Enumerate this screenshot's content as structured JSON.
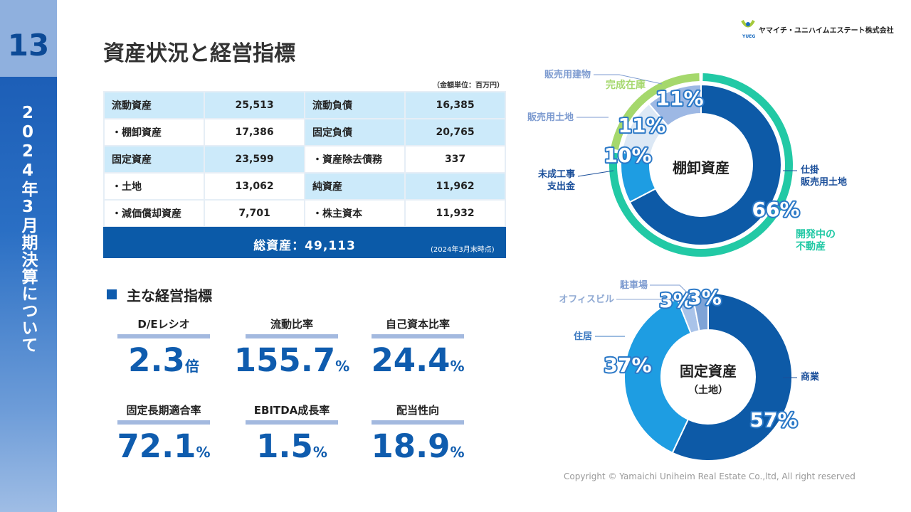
{
  "header": {
    "page_number": "13",
    "side_title": "2024年3月期決算について",
    "title": "資産状況と経営指標",
    "company": "ヤマイチ・ユニハイムエステート株式会社",
    "logo_text": "YUEG"
  },
  "table": {
    "unit_note": "（金額単位：百万円）",
    "rows": [
      [
        "流動資産",
        "25,513",
        "流動負債",
        "16,385"
      ],
      [
        "・棚卸資産",
        "17,386",
        "固定負債",
        "20,765"
      ],
      [
        "固定資産",
        "23,599",
        "・資産除去債務",
        "337"
      ],
      [
        "・土地",
        "13,062",
        "純資産",
        "11,962"
      ],
      [
        "・減価償却資産",
        "7,701",
        "・株主資本",
        "11,932"
      ]
    ],
    "total": "総資産：49,113",
    "as_of": "(2024年3月末時点)"
  },
  "indicators": {
    "heading": "主な経営指標",
    "items": [
      {
        "label": "D/Eレシオ",
        "value": "2.3",
        "unit": "倍"
      },
      {
        "label": "流動比率",
        "value": "155.7",
        "unit": "%"
      },
      {
        "label": "自己資本比率",
        "value": "24.4",
        "unit": "%"
      },
      {
        "label": "固定長期適合率",
        "value": "72.1",
        "unit": "%"
      },
      {
        "label": "EBITDA成長率",
        "value": "1.5",
        "unit": "%"
      },
      {
        "label": "配当性向",
        "value": "18.9",
        "unit": "%"
      }
    ]
  },
  "chart_data": [
    {
      "type": "donut",
      "center_label": "棚卸資産",
      "categories": [
        "仕掛\n販売用土地",
        "未成工事\n支出金",
        "販売用土地",
        "販売用建物"
      ],
      "values": [
        66,
        10,
        11,
        11
      ],
      "value_labels": [
        "66%",
        "10%",
        "11%",
        "11%"
      ],
      "colors": [
        "#0d5aa7",
        "#1e9de2",
        "#dce8f5",
        "#9db8e4"
      ],
      "outer_ring": {
        "categories": [
          "開発中の\n不動産",
          "完成在庫"
        ],
        "values": [
          76,
          22
        ],
        "colors": [
          "#22c9a5",
          "#a5d86c"
        ]
      }
    },
    {
      "type": "donut",
      "center_label": "固定資産",
      "center_sublabel": "（土地）",
      "categories": [
        "商業",
        "住居",
        "オフィスビル",
        "駐車場"
      ],
      "values": [
        57,
        37,
        3,
        3
      ],
      "value_labels": [
        "57%",
        "37%",
        "3%",
        "3%"
      ],
      "colors": [
        "#0d5aa7",
        "#1e9de2",
        "#a9c3e9",
        "#7fa3d6"
      ]
    }
  ],
  "footer": {
    "copyright": "Copyright © Yamaichi Uniheim Real Estate Co.,ltd, All right reserved"
  }
}
